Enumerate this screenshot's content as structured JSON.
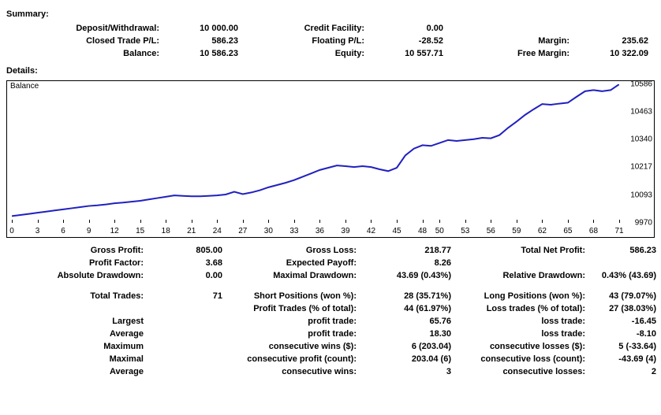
{
  "sections": {
    "summary_title": "Summary:",
    "details_title": "Details:"
  },
  "summary": {
    "deposit_withdrawal": {
      "label": "Deposit/Withdrawal:",
      "value": "10 000.00"
    },
    "credit_facility": {
      "label": "Credit Facility:",
      "value": "0.00"
    },
    "closed_trade_pl": {
      "label": "Closed Trade P/L:",
      "value": "586.23"
    },
    "floating_pl": {
      "label": "Floating P/L:",
      "value": "-28.52"
    },
    "margin": {
      "label": "Margin:",
      "value": "235.62"
    },
    "balance": {
      "label": "Balance:",
      "value": "10 586.23"
    },
    "equity": {
      "label": "Equity:",
      "value": "10 557.71"
    },
    "free_margin": {
      "label": "Free Margin:",
      "value": "10 322.09"
    }
  },
  "chart": {
    "title": "Balance",
    "type": "line",
    "line_color": "#2020c0",
    "line_width": 2,
    "background_color": "#ffffff",
    "border_color": "#000000",
    "x_min": 0,
    "x_max": 71,
    "y_min": 9970,
    "y_max": 10586,
    "y_ticks": [
      9970,
      10093,
      10217,
      10340,
      10463,
      10586
    ],
    "x_ticks": [
      0,
      3,
      6,
      9,
      12,
      15,
      18,
      21,
      24,
      27,
      30,
      33,
      36,
      39,
      42,
      45,
      48,
      50,
      53,
      56,
      59,
      62,
      65,
      68,
      71
    ],
    "points": [
      [
        0,
        10000
      ],
      [
        1,
        10005
      ],
      [
        2,
        10010
      ],
      [
        3,
        10015
      ],
      [
        4,
        10020
      ],
      [
        5,
        10025
      ],
      [
        6,
        10030
      ],
      [
        7,
        10035
      ],
      [
        8,
        10040
      ],
      [
        9,
        10045
      ],
      [
        10,
        10048
      ],
      [
        11,
        10052
      ],
      [
        12,
        10057
      ],
      [
        13,
        10060
      ],
      [
        14,
        10064
      ],
      [
        15,
        10068
      ],
      [
        16,
        10074
      ],
      [
        17,
        10080
      ],
      [
        18,
        10086
      ],
      [
        19,
        10092
      ],
      [
        20,
        10090
      ],
      [
        21,
        10088
      ],
      [
        22,
        10088
      ],
      [
        23,
        10090
      ],
      [
        24,
        10092
      ],
      [
        25,
        10096
      ],
      [
        26,
        10108
      ],
      [
        27,
        10098
      ],
      [
        28,
        10105
      ],
      [
        29,
        10115
      ],
      [
        30,
        10128
      ],
      [
        31,
        10138
      ],
      [
        32,
        10148
      ],
      [
        33,
        10160
      ],
      [
        34,
        10175
      ],
      [
        35,
        10190
      ],
      [
        36,
        10205
      ],
      [
        37,
        10215
      ],
      [
        38,
        10225
      ],
      [
        39,
        10222
      ],
      [
        40,
        10218
      ],
      [
        41,
        10222
      ],
      [
        42,
        10218
      ],
      [
        43,
        10208
      ],
      [
        44,
        10200
      ],
      [
        45,
        10215
      ],
      [
        46,
        10270
      ],
      [
        47,
        10300
      ],
      [
        48,
        10315
      ],
      [
        49,
        10312
      ],
      [
        50,
        10325
      ],
      [
        51,
        10338
      ],
      [
        52,
        10334
      ],
      [
        53,
        10338
      ],
      [
        54,
        10342
      ],
      [
        55,
        10348
      ],
      [
        56,
        10346
      ],
      [
        57,
        10360
      ],
      [
        58,
        10392
      ],
      [
        59,
        10420
      ],
      [
        60,
        10450
      ],
      [
        61,
        10475
      ],
      [
        62,
        10498
      ],
      [
        63,
        10495
      ],
      [
        64,
        10500
      ],
      [
        65,
        10504
      ],
      [
        66,
        10530
      ],
      [
        67,
        10555
      ],
      [
        68,
        10560
      ],
      [
        69,
        10555
      ],
      [
        70,
        10560
      ],
      [
        71,
        10586
      ]
    ]
  },
  "stats": {
    "gross_profit": {
      "label": "Gross Profit:",
      "value": "805.00"
    },
    "gross_loss": {
      "label": "Gross Loss:",
      "value": "218.77"
    },
    "total_net_profit": {
      "label": "Total Net Profit:",
      "value": "586.23"
    },
    "profit_factor": {
      "label": "Profit Factor:",
      "value": "3.68"
    },
    "expected_payoff": {
      "label": "Expected Payoff:",
      "value": "8.26"
    },
    "absolute_drawdown": {
      "label": "Absolute Drawdown:",
      "value": "0.00"
    },
    "maximal_drawdown": {
      "label": "Maximal Drawdown:",
      "value": "43.69 (0.43%)"
    },
    "relative_drawdown": {
      "label": "Relative Drawdown:",
      "value": "0.43% (43.69)"
    },
    "total_trades": {
      "label": "Total Trades:",
      "value": "71"
    },
    "short_positions": {
      "label": "Short Positions (won %):",
      "value": "28 (35.71%)"
    },
    "long_positions": {
      "label": "Long Positions (won %):",
      "value": "43 (79.07%)"
    },
    "profit_trades_pct": {
      "label": "Profit Trades (% of total):",
      "value": "44 (61.97%)"
    },
    "loss_trades_pct": {
      "label": "Loss trades (% of total):",
      "value": "27 (38.03%)"
    },
    "largest": {
      "label": "Largest"
    },
    "largest_profit": {
      "label": "profit trade:",
      "value": "65.76"
    },
    "largest_loss": {
      "label": "loss trade:",
      "value": "-16.45"
    },
    "average": {
      "label": "Average"
    },
    "avg_profit": {
      "label": "profit trade:",
      "value": "18.30"
    },
    "avg_loss": {
      "label": "loss trade:",
      "value": "-8.10"
    },
    "maximum": {
      "label": "Maximum"
    },
    "max_cons_wins": {
      "label": "consecutive wins ($):",
      "value": "6 (203.04)"
    },
    "max_cons_losses": {
      "label": "consecutive losses ($):",
      "value": "5 (-33.64)"
    },
    "maximal": {
      "label": "Maximal"
    },
    "max_cons_profit": {
      "label": "consecutive profit (count):",
      "value": "203.04 (6)"
    },
    "max_cons_loss": {
      "label": "consecutive loss (count):",
      "value": "-43.69 (4)"
    },
    "average2": {
      "label": "Average"
    },
    "avg_cons_wins": {
      "label": "consecutive wins:",
      "value": "3"
    },
    "avg_cons_losses": {
      "label": "consecutive losses:",
      "value": "2"
    }
  }
}
